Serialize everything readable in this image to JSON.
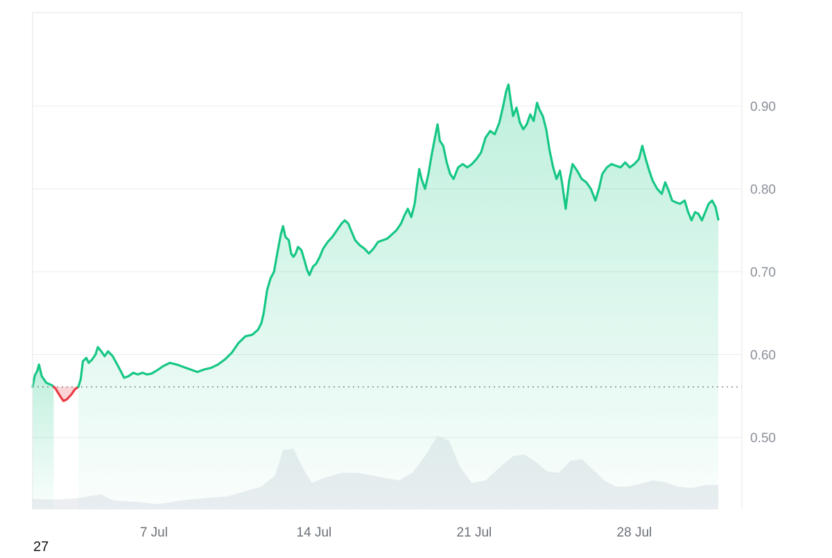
{
  "chart_data": {
    "type": "area",
    "x_unit": "days",
    "x_start_day": 0,
    "x_end_day": 31.0,
    "x_ticks": [
      {
        "label": "7 Jul",
        "day": 5.3
      },
      {
        "label": "14 Jul",
        "day": 12.3
      },
      {
        "label": "21 Jul",
        "day": 19.3
      },
      {
        "label": "28 Jul",
        "day": 26.3
      }
    ],
    "y_ticks": [
      0.5,
      0.6,
      0.7,
      0.8,
      0.9
    ],
    "ylim": [
      0.413,
      1.013
    ],
    "baseline": 0.561,
    "price_points": [
      [
        0.0,
        0.561
      ],
      [
        0.1,
        0.575
      ],
      [
        0.2,
        0.58
      ],
      [
        0.28,
        0.588
      ],
      [
        0.4,
        0.574
      ],
      [
        0.6,
        0.566
      ],
      [
        0.85,
        0.563
      ],
      [
        1.0,
        0.559
      ],
      [
        1.2,
        0.55
      ],
      [
        1.35,
        0.544
      ],
      [
        1.5,
        0.546
      ],
      [
        1.7,
        0.552
      ],
      [
        1.85,
        0.558
      ],
      [
        2.0,
        0.561
      ],
      [
        2.1,
        0.57
      ],
      [
        2.2,
        0.592
      ],
      [
        2.35,
        0.596
      ],
      [
        2.45,
        0.59
      ],
      [
        2.6,
        0.594
      ],
      [
        2.75,
        0.6
      ],
      [
        2.85,
        0.609
      ],
      [
        3.0,
        0.604
      ],
      [
        3.15,
        0.598
      ],
      [
        3.3,
        0.604
      ],
      [
        3.5,
        0.598
      ],
      [
        3.7,
        0.588
      ],
      [
        3.85,
        0.58
      ],
      [
        4.0,
        0.572
      ],
      [
        4.2,
        0.574
      ],
      [
        4.4,
        0.578
      ],
      [
        4.6,
        0.576
      ],
      [
        4.8,
        0.578
      ],
      [
        5.0,
        0.576
      ],
      [
        5.2,
        0.577
      ],
      [
        5.5,
        0.582
      ],
      [
        5.7,
        0.586
      ],
      [
        6.0,
        0.59
      ],
      [
        6.3,
        0.588
      ],
      [
        6.6,
        0.585
      ],
      [
        6.9,
        0.582
      ],
      [
        7.2,
        0.579
      ],
      [
        7.5,
        0.582
      ],
      [
        7.8,
        0.584
      ],
      [
        8.1,
        0.588
      ],
      [
        8.4,
        0.594
      ],
      [
        8.7,
        0.602
      ],
      [
        9.0,
        0.614
      ],
      [
        9.3,
        0.622
      ],
      [
        9.6,
        0.624
      ],
      [
        9.85,
        0.63
      ],
      [
        10.0,
        0.638
      ],
      [
        10.1,
        0.65
      ],
      [
        10.25,
        0.678
      ],
      [
        10.4,
        0.692
      ],
      [
        10.55,
        0.7
      ],
      [
        10.7,
        0.723
      ],
      [
        10.85,
        0.745
      ],
      [
        10.95,
        0.755
      ],
      [
        11.05,
        0.742
      ],
      [
        11.2,
        0.738
      ],
      [
        11.3,
        0.722
      ],
      [
        11.4,
        0.718
      ],
      [
        11.5,
        0.722
      ],
      [
        11.6,
        0.73
      ],
      [
        11.75,
        0.726
      ],
      [
        11.9,
        0.712
      ],
      [
        12.0,
        0.702
      ],
      [
        12.1,
        0.696
      ],
      [
        12.25,
        0.706
      ],
      [
        12.4,
        0.71
      ],
      [
        12.55,
        0.718
      ],
      [
        12.7,
        0.728
      ],
      [
        12.9,
        0.736
      ],
      [
        13.1,
        0.742
      ],
      [
        13.3,
        0.75
      ],
      [
        13.5,
        0.758
      ],
      [
        13.65,
        0.762
      ],
      [
        13.8,
        0.758
      ],
      [
        13.95,
        0.748
      ],
      [
        14.1,
        0.738
      ],
      [
        14.3,
        0.732
      ],
      [
        14.5,
        0.728
      ],
      [
        14.7,
        0.722
      ],
      [
        14.9,
        0.728
      ],
      [
        15.1,
        0.736
      ],
      [
        15.3,
        0.738
      ],
      [
        15.5,
        0.74
      ],
      [
        15.7,
        0.745
      ],
      [
        15.9,
        0.75
      ],
      [
        16.1,
        0.758
      ],
      [
        16.25,
        0.768
      ],
      [
        16.4,
        0.776
      ],
      [
        16.55,
        0.766
      ],
      [
        16.7,
        0.782
      ],
      [
        16.8,
        0.804
      ],
      [
        16.9,
        0.824
      ],
      [
        17.0,
        0.812
      ],
      [
        17.15,
        0.8
      ],
      [
        17.3,
        0.818
      ],
      [
        17.45,
        0.842
      ],
      [
        17.6,
        0.864
      ],
      [
        17.7,
        0.878
      ],
      [
        17.8,
        0.858
      ],
      [
        17.95,
        0.852
      ],
      [
        18.1,
        0.832
      ],
      [
        18.25,
        0.818
      ],
      [
        18.4,
        0.812
      ],
      [
        18.6,
        0.826
      ],
      [
        18.8,
        0.83
      ],
      [
        19.0,
        0.826
      ],
      [
        19.2,
        0.83
      ],
      [
        19.4,
        0.836
      ],
      [
        19.6,
        0.844
      ],
      [
        19.8,
        0.862
      ],
      [
        20.0,
        0.87
      ],
      [
        20.2,
        0.866
      ],
      [
        20.4,
        0.88
      ],
      [
        20.55,
        0.898
      ],
      [
        20.7,
        0.918
      ],
      [
        20.8,
        0.926
      ],
      [
        20.9,
        0.906
      ],
      [
        21.0,
        0.888
      ],
      [
        21.15,
        0.898
      ],
      [
        21.3,
        0.88
      ],
      [
        21.45,
        0.872
      ],
      [
        21.6,
        0.878
      ],
      [
        21.75,
        0.89
      ],
      [
        21.9,
        0.882
      ],
      [
        22.05,
        0.904
      ],
      [
        22.15,
        0.896
      ],
      [
        22.3,
        0.888
      ],
      [
        22.45,
        0.872
      ],
      [
        22.6,
        0.846
      ],
      [
        22.75,
        0.826
      ],
      [
        22.9,
        0.812
      ],
      [
        23.05,
        0.822
      ],
      [
        23.15,
        0.806
      ],
      [
        23.3,
        0.776
      ],
      [
        23.45,
        0.81
      ],
      [
        23.6,
        0.83
      ],
      [
        23.8,
        0.822
      ],
      [
        24.0,
        0.812
      ],
      [
        24.2,
        0.808
      ],
      [
        24.4,
        0.8
      ],
      [
        24.6,
        0.786
      ],
      [
        24.75,
        0.8
      ],
      [
        24.9,
        0.818
      ],
      [
        25.1,
        0.826
      ],
      [
        25.3,
        0.83
      ],
      [
        25.5,
        0.828
      ],
      [
        25.7,
        0.826
      ],
      [
        25.9,
        0.832
      ],
      [
        26.1,
        0.826
      ],
      [
        26.3,
        0.83
      ],
      [
        26.5,
        0.836
      ],
      [
        26.65,
        0.852
      ],
      [
        26.8,
        0.836
      ],
      [
        26.95,
        0.822
      ],
      [
        27.1,
        0.81
      ],
      [
        27.3,
        0.8
      ],
      [
        27.5,
        0.794
      ],
      [
        27.65,
        0.808
      ],
      [
        27.8,
        0.798
      ],
      [
        27.95,
        0.786
      ],
      [
        28.1,
        0.784
      ],
      [
        28.3,
        0.782
      ],
      [
        28.5,
        0.786
      ],
      [
        28.65,
        0.772
      ],
      [
        28.8,
        0.762
      ],
      [
        28.95,
        0.772
      ],
      [
        29.1,
        0.77
      ],
      [
        29.25,
        0.762
      ],
      [
        29.4,
        0.772
      ],
      [
        29.55,
        0.782
      ],
      [
        29.7,
        0.786
      ],
      [
        29.85,
        0.778
      ],
      [
        29.97,
        0.763
      ]
    ],
    "volume_points": [
      [
        0.0,
        0.14
      ],
      [
        1.0,
        0.13
      ],
      [
        2.0,
        0.15
      ],
      [
        3.0,
        0.2
      ],
      [
        3.5,
        0.12
      ],
      [
        4.5,
        0.1
      ],
      [
        5.5,
        0.07
      ],
      [
        6.5,
        0.12
      ],
      [
        7.5,
        0.15
      ],
      [
        8.5,
        0.17
      ],
      [
        9.3,
        0.24
      ],
      [
        10.0,
        0.3
      ],
      [
        10.6,
        0.45
      ],
      [
        10.95,
        0.78
      ],
      [
        11.4,
        0.8
      ],
      [
        11.8,
        0.55
      ],
      [
        12.2,
        0.35
      ],
      [
        12.8,
        0.42
      ],
      [
        13.5,
        0.48
      ],
      [
        14.2,
        0.48
      ],
      [
        14.8,
        0.45
      ],
      [
        15.3,
        0.42
      ],
      [
        16.0,
        0.38
      ],
      [
        16.6,
        0.48
      ],
      [
        17.2,
        0.72
      ],
      [
        17.7,
        0.97
      ],
      [
        18.2,
        0.9
      ],
      [
        18.7,
        0.55
      ],
      [
        19.2,
        0.35
      ],
      [
        19.8,
        0.38
      ],
      [
        20.4,
        0.55
      ],
      [
        21.0,
        0.7
      ],
      [
        21.5,
        0.72
      ],
      [
        22.0,
        0.62
      ],
      [
        22.5,
        0.5
      ],
      [
        23.0,
        0.48
      ],
      [
        23.5,
        0.64
      ],
      [
        24.0,
        0.66
      ],
      [
        24.5,
        0.52
      ],
      [
        25.0,
        0.38
      ],
      [
        25.5,
        0.3
      ],
      [
        26.0,
        0.3
      ],
      [
        26.6,
        0.34
      ],
      [
        27.1,
        0.38
      ],
      [
        27.6,
        0.36
      ],
      [
        28.2,
        0.3
      ],
      [
        28.8,
        0.28
      ],
      [
        29.4,
        0.32
      ],
      [
        29.97,
        0.32
      ]
    ]
  },
  "corner_label": "27"
}
